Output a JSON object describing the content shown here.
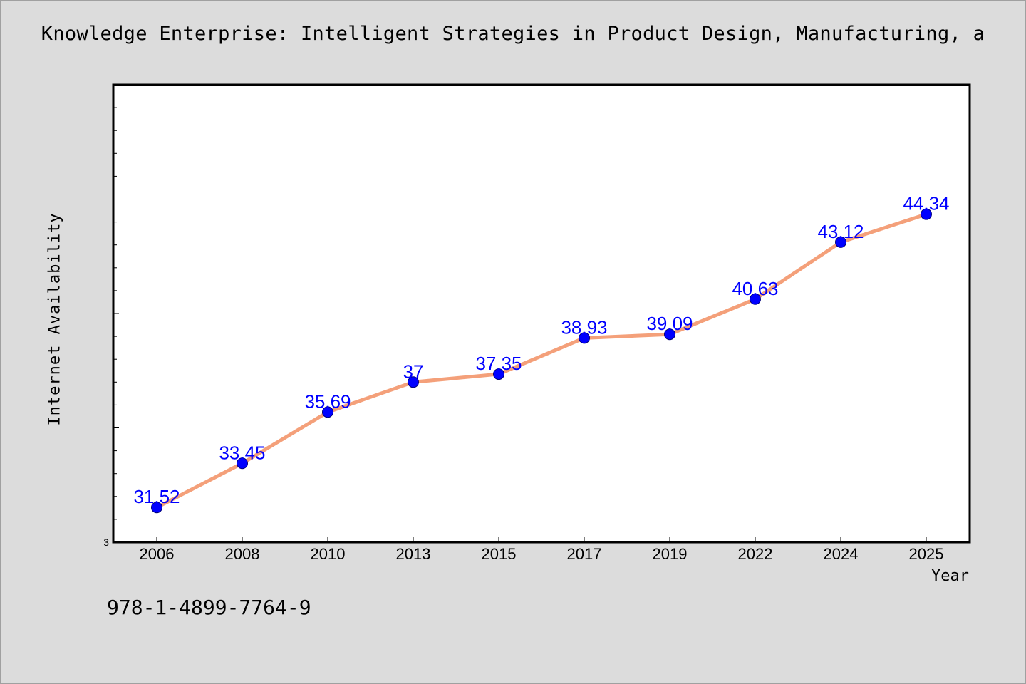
{
  "colors": {
    "background": "#dcdcdc",
    "plot_background": "#ffffff",
    "line": "#f4a07a",
    "marker": "#0000ff",
    "data_label": "#0000ff"
  },
  "footer": {
    "isbn": "978-1-4899-7764-9"
  },
  "chart_data": {
    "type": "line",
    "title": "Knowledge Enterprise: Intelligent Strategies in Product Design, Manufacturing, a",
    "xlabel": "Year",
    "ylabel": "Internet Availability",
    "categories": [
      "2006",
      "2008",
      "2010",
      "2013",
      "2015",
      "2017",
      "2019",
      "2022",
      "2024",
      "2025"
    ],
    "series": [
      {
        "values": [
          31.52,
          33.45,
          35.69,
          37,
          37.35,
          38.93,
          39.09,
          40.63,
          43.12,
          44.34
        ]
      }
    ],
    "data_labels": [
      "31.52",
      "33.45",
      "35.69",
      "37",
      "37.35",
      "38.93",
      "39.09",
      "40.63",
      "43.12",
      "44.34"
    ],
    "y_tick_labels": [
      "3"
    ],
    "ylim": [
      30,
      50
    ],
    "grid": false,
    "legend": "none"
  }
}
